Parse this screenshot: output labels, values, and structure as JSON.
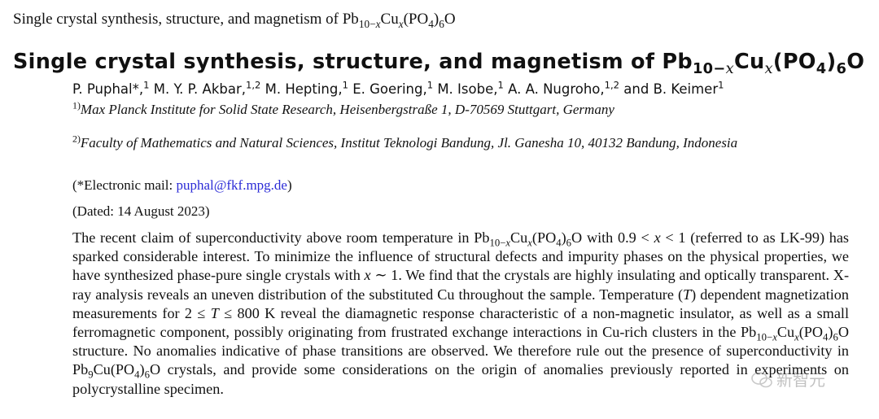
{
  "header_line": "Single crystal synthesis, structure, and magnetism of Pb10−xCux(PO4)6O",
  "title": {
    "prefix": "Single crystal synthesis, structure, and magnetism of Pb",
    "sub1": "10−",
    "sub1_var": "x",
    "cu": "Cu",
    "cu_sub": "x",
    "po": "(PO",
    "po_sub": "4",
    "close": ")",
    "six": "6",
    "o": "O"
  },
  "authors_text": "P. Puphal*,1 M. Y. P. Akbar,1,2 M. Hepting,1 E. Goering,1 M. Isobe,1 A. A. Nugroho,1,2 and B. Keimer1",
  "affiliations": [
    {
      "mark": "1)",
      "text": "Max Planck Institute for Solid State Research, Heisenbergstraße 1, D-70569 Stuttgart, Germany"
    },
    {
      "mark": "2)",
      "text": "Faculty of Mathematics and Natural Sciences, Institut Teknologi Bandung, Jl. Ganesha 10, 40132 Bandung, Indonesia"
    }
  ],
  "email": {
    "prefix": "(*Electronic mail: ",
    "address": "puphal@fkf.mpg.de",
    "suffix": ")"
  },
  "dated": "(Dated: 14 August 2023)",
  "abstract": "The recent claim of superconductivity above room temperature in Pb10−xCux(PO4)6O with 0.9 < x < 1 (referred to as LK-99) has sparked considerable interest. To minimize the influence of structural defects and impurity phases on the physical properties, we have synthesized phase-pure single crystals with x ∼ 1. We find that the crystals are highly insulating and optically transparent. X-ray analysis reveals an uneven distribution of the substituted Cu throughout the sample. Temperature (T) dependent magnetization measurements for 2 ≤ T ≤ 800 K reveal the diamagnetic response characteristic of a non-magnetic insulator, as well as a small ferromagnetic component, possibly originating from frustrated exchange interactions in Cu-rich clusters in the Pb10−xCux(PO4)6O structure. No anomalies indicative of phase transitions are observed. We therefore rule out the presence of superconductivity in Pb9Cu(PO4)6O crystals, and provide some considerations on the origin of anomalies previously reported in experiments on polycrystalline specimen.",
  "watermark_text": "新智元",
  "colors": {
    "link": "#2b2bd6",
    "text": "#111111"
  }
}
